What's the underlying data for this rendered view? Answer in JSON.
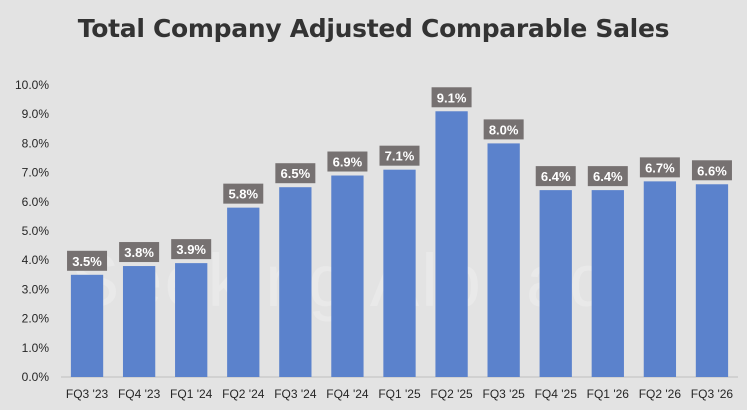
{
  "watermark": "Seeking Alphaα",
  "chart_data": {
    "type": "bar",
    "title": "Total Company Adjusted Comparable Sales",
    "xlabel": "",
    "ylabel": "",
    "categories": [
      "FQ3 '23",
      "FQ4 '23",
      "FQ1 '24",
      "FQ2 '24",
      "FQ3 '24",
      "FQ4 '24",
      "FQ1 '25",
      "FQ2 '25",
      "FQ3 '25",
      "FQ4 '25",
      "FQ1 '26",
      "FQ2 '26",
      "FQ3 '26"
    ],
    "values": [
      3.5,
      3.8,
      3.9,
      5.8,
      6.5,
      6.9,
      7.1,
      9.1,
      8.0,
      6.4,
      6.4,
      6.7,
      6.6
    ],
    "data_labels": [
      "3.5%",
      "3.8%",
      "3.9%",
      "5.8%",
      "6.5%",
      "6.9%",
      "7.1%",
      "9.1%",
      "8.0%",
      "6.4%",
      "6.4%",
      "6.7%",
      "6.6%"
    ],
    "ylim": [
      0,
      10
    ],
    "yticks": [
      0,
      1,
      2,
      3,
      4,
      5,
      6,
      7,
      8,
      9,
      10
    ],
    "ytick_labels": [
      "0.0%",
      "1.0%",
      "2.0%",
      "3.0%",
      "4.0%",
      "5.0%",
      "6.0%",
      "7.0%",
      "8.0%",
      "9.0%",
      "10.0%"
    ],
    "grid": false,
    "legend": "none",
    "colors": {
      "bar": "#5b82cc",
      "label_bg": "#767171",
      "label_text": "#ffffff",
      "axis_text": "#262626",
      "background": "#e3e3e3"
    }
  }
}
